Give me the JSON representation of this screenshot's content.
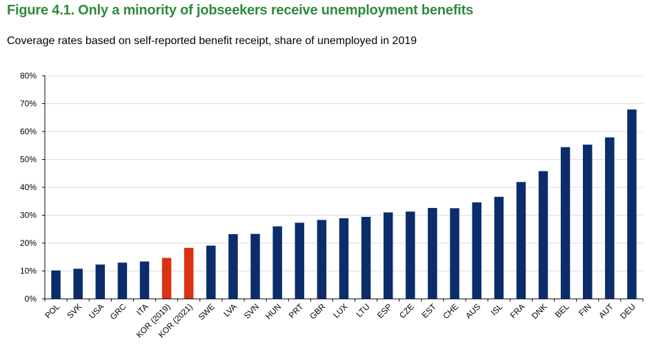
{
  "figure": {
    "title": "Figure  4.1. Only a minority of jobseekers receive unemployment benefits",
    "subtitle": "Coverage rates based on self-reported benefit receipt, share of unemployed in 2019"
  },
  "colors": {
    "default_bar": "#0b2d6b",
    "highlight_bar": "#db3214",
    "gridline": "#dcdcdc",
    "axis": "#000000"
  },
  "chart_data": {
    "type": "bar",
    "title": "Only a minority of jobseekers receive unemployment benefits",
    "xlabel": "",
    "ylabel": "",
    "ylim": [
      0,
      80
    ],
    "yticks": [
      0,
      10,
      20,
      30,
      40,
      50,
      60,
      70,
      80
    ],
    "ytick_labels": [
      "0%",
      "10%",
      "20%",
      "30%",
      "40%",
      "50%",
      "60%",
      "70%",
      "80%"
    ],
    "grid": true,
    "categories": [
      "POL",
      "SVK",
      "USA",
      "GRC",
      "ITA",
      "KOR (2019)",
      "KOR (2021)",
      "SWE",
      "LVA",
      "SVN",
      "HUN",
      "PRT",
      "GBR",
      "LUX",
      "LTU",
      "ESP",
      "CZE",
      "EST",
      "CHE",
      "AUS",
      "ISL",
      "FRA",
      "DNK",
      "BEL",
      "FIN",
      "AUT",
      "DEU"
    ],
    "values": [
      10.2,
      10.8,
      12.3,
      13.0,
      13.4,
      14.7,
      18.3,
      19.1,
      23.2,
      23.3,
      26.0,
      27.3,
      28.3,
      28.9,
      29.4,
      31.0,
      31.3,
      32.6,
      32.5,
      34.6,
      36.6,
      41.9,
      45.8,
      54.4,
      55.3,
      57.9,
      67.9
    ],
    "highlight": [
      "KOR (2019)",
      "KOR (2021)"
    ]
  }
}
